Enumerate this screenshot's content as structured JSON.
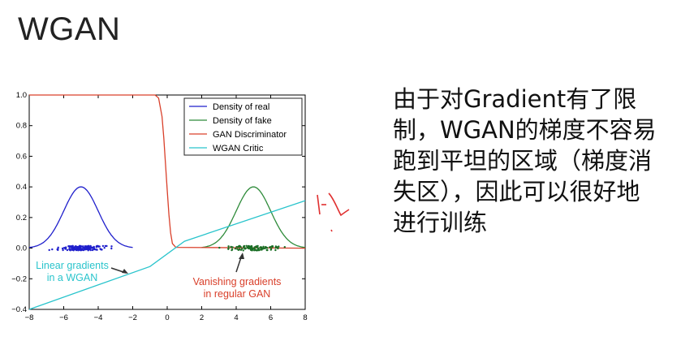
{
  "slide": {
    "title": "WGAN",
    "side_text": "由于对Gradient有了限制，WGAN的梯度不容易跑到平坦的区域（梯度消失区），因此可以很好地进行训练",
    "handwritten_note": "1-L"
  },
  "chart_data": {
    "type": "line",
    "title": "",
    "xlabel": "",
    "ylabel": "",
    "xlim": [
      -8,
      8
    ],
    "ylim": [
      -0.4,
      1.0
    ],
    "xticks": [
      -8,
      -6,
      -4,
      -2,
      0,
      2,
      4,
      6,
      8
    ],
    "yticks": [
      -0.4,
      -0.2,
      0.0,
      0.2,
      0.4,
      0.6,
      0.8,
      1.0
    ],
    "ytick_labels": [
      "−0.4",
      "−0.2",
      "0.0",
      "0.2",
      "0.4",
      "0.6",
      "0.8",
      "1.0"
    ],
    "xtick_labels": [
      "−8",
      "−6",
      "−4",
      "−2",
      "0",
      "2",
      "4",
      "6",
      "8"
    ],
    "grid": false,
    "legend_placement": "top-right",
    "series": [
      {
        "name": "Density of real",
        "color": "#1f1fcc",
        "kind": "gaussian",
        "mean": -5,
        "sd": 1.0,
        "peak": 0.4,
        "range": [
          -8,
          -2
        ]
      },
      {
        "name": "Density of fake",
        "color": "#2e8b3a",
        "kind": "gaussian",
        "mean": 5,
        "sd": 1.0,
        "peak": 0.4,
        "range": [
          2,
          8
        ]
      },
      {
        "name": "GAN Discriminator",
        "color": "#d9402b",
        "kind": "points",
        "x": [
          -8,
          -0.7,
          -0.5,
          -0.3,
          -0.2,
          -0.1,
          0.0,
          0.1,
          0.2,
          0.3,
          0.5,
          8
        ],
        "y": [
          1.0,
          1.0,
          0.98,
          0.86,
          0.72,
          0.55,
          0.38,
          0.22,
          0.1,
          0.03,
          0.005,
          0.0
        ]
      },
      {
        "name": "WGAN Critic",
        "color": "#29c4cc",
        "kind": "points",
        "x": [
          -8,
          -1,
          1,
          8
        ],
        "y": [
          -0.4,
          -0.12,
          0.045,
          0.31
        ]
      }
    ],
    "scatter": [
      {
        "name": "real samples",
        "color": "#1f1fcc",
        "center": -5,
        "spread": 1.1,
        "count": 150
      },
      {
        "name": "fake samples",
        "color": "#1a6e25",
        "center": 5,
        "spread": 1.1,
        "count": 110
      }
    ],
    "annotations": [
      {
        "text_lines": [
          "Linear gradients",
          "in a WGAN"
        ],
        "color": "#29c4cc"
      },
      {
        "text_lines": [
          "Vanishing gradients",
          "in regular GAN"
        ],
        "color": "#d9402b"
      }
    ]
  }
}
